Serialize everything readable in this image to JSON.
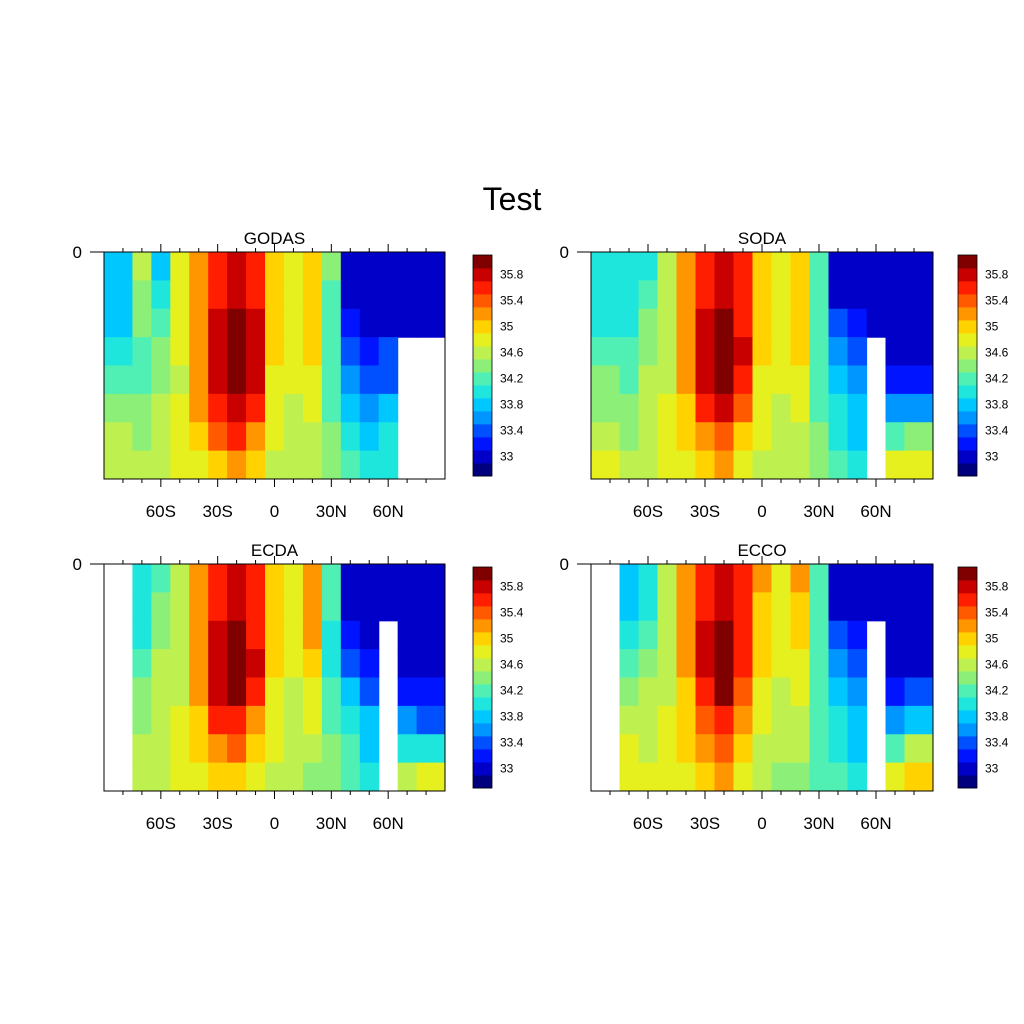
{
  "figure": {
    "title": "Test"
  },
  "colors": {
    "levels": [
      33.0,
      33.2,
      33.4,
      33.6,
      33.8,
      34.0,
      34.2,
      34.4,
      34.6,
      34.8,
      35.0,
      35.2,
      35.4,
      35.6,
      35.8,
      36.0
    ],
    "fills": [
      "#00007f",
      "#0000c8",
      "#0014ff",
      "#0050ff",
      "#0096ff",
      "#00c8ff",
      "#1ee6dc",
      "#50f0b4",
      "#8cf078",
      "#bef050",
      "#e6f01e",
      "#ffd200",
      "#ff9600",
      "#ff5a00",
      "#ff1e00",
      "#c80000",
      "#800000"
    ]
  },
  "colorbar": {
    "tick_labels": [
      "33",
      "33.4",
      "33.8",
      "34.2",
      "34.6",
      "35",
      "35.4",
      "35.8"
    ]
  },
  "x_ticks": [
    "60S",
    "30S",
    "0",
    "30N",
    "60N"
  ],
  "y_ticks": [
    "0"
  ],
  "chart_data": [
    {
      "type": "heatmap",
      "title": "GODAS",
      "x": [
        -80,
        -70,
        -60,
        -50,
        -40,
        -30,
        -20,
        -10,
        0,
        10,
        20,
        30,
        40,
        50,
        60,
        70,
        80
      ],
      "y_depth_levels": [
        0,
        1,
        2,
        3,
        4,
        5,
        6,
        7
      ],
      "values": [
        [
          33.9,
          34.6,
          33.8,
          34.8,
          35.2,
          35.6,
          35.8,
          35.6,
          35.0,
          34.8,
          35.0,
          34.4,
          33.0,
          33.0,
          33.0,
          33.0,
          33.0
        ],
        [
          33.8,
          34.5,
          34.0,
          34.8,
          35.3,
          35.7,
          35.8,
          35.7,
          35.1,
          34.8,
          35.0,
          34.3,
          33.0,
          33.0,
          33.0,
          33.0,
          33.0
        ],
        [
          33.9,
          34.4,
          34.2,
          34.8,
          35.3,
          35.8,
          36.0,
          35.8,
          35.0,
          34.9,
          35.1,
          34.3,
          33.2,
          33.1,
          33.0,
          33.0,
          33.0
        ],
        [
          34.1,
          34.3,
          34.4,
          34.8,
          35.3,
          35.8,
          36.1,
          35.9,
          35.0,
          34.9,
          35.0,
          34.2,
          33.4,
          33.3,
          33.4,
          null,
          null
        ],
        [
          34.2,
          34.2,
          34.5,
          34.7,
          35.2,
          35.8,
          36.2,
          35.8,
          34.9,
          34.8,
          34.9,
          34.2,
          33.6,
          33.5,
          33.5,
          null,
          null
        ],
        [
          34.4,
          34.4,
          34.6,
          34.8,
          35.2,
          35.7,
          35.9,
          35.6,
          34.9,
          34.7,
          34.8,
          34.3,
          33.8,
          33.7,
          33.8,
          null,
          null
        ],
        [
          34.6,
          34.5,
          34.6,
          34.8,
          35.0,
          35.4,
          35.6,
          35.2,
          34.8,
          34.6,
          34.7,
          34.4,
          34.0,
          33.9,
          34.0,
          null,
          null
        ],
        [
          34.6,
          34.6,
          34.6,
          34.8,
          34.9,
          35.1,
          35.2,
          35.0,
          34.7,
          34.6,
          34.6,
          34.4,
          34.2,
          34.0,
          34.1,
          null,
          null
        ]
      ]
    },
    {
      "type": "heatmap",
      "title": "SODA",
      "x": [
        -80,
        -70,
        -60,
        -50,
        -40,
        -30,
        -20,
        -10,
        0,
        10,
        20,
        30,
        40,
        50,
        60,
        70,
        80
      ],
      "y_depth_levels": [
        0,
        1,
        2,
        3,
        4,
        5,
        6,
        7
      ],
      "values": [
        [
          34.0,
          34.0,
          34.0,
          34.6,
          35.2,
          35.6,
          35.8,
          35.6,
          35.1,
          34.8,
          35.1,
          34.3,
          33.0,
          33.0,
          33.0,
          33.0,
          33.0
        ],
        [
          34.0,
          34.0,
          34.2,
          34.7,
          35.3,
          35.7,
          35.9,
          35.6,
          35.1,
          34.8,
          35.0,
          34.2,
          33.0,
          33.0,
          33.0,
          33.0,
          33.0
        ],
        [
          34.1,
          34.1,
          34.4,
          34.7,
          35.3,
          35.8,
          36.0,
          35.7,
          35.0,
          34.9,
          35.1,
          34.2,
          33.4,
          33.2,
          33.0,
          33.0,
          33.0
        ],
        [
          34.2,
          34.2,
          34.5,
          34.7,
          35.3,
          35.8,
          36.1,
          35.8,
          35.0,
          34.9,
          35.0,
          34.2,
          33.6,
          33.4,
          null,
          33.1,
          33.0
        ],
        [
          34.4,
          34.3,
          34.6,
          34.7,
          35.2,
          35.8,
          36.1,
          35.7,
          34.9,
          34.8,
          34.9,
          34.2,
          33.8,
          33.6,
          null,
          33.3,
          33.2
        ],
        [
          34.5,
          34.4,
          34.6,
          34.8,
          35.1,
          35.6,
          35.8,
          35.4,
          34.9,
          34.7,
          34.8,
          34.3,
          34.0,
          33.8,
          null,
          33.6,
          33.6
        ],
        [
          34.6,
          34.5,
          34.6,
          34.8,
          35.0,
          35.3,
          35.5,
          35.1,
          34.8,
          34.6,
          34.7,
          34.4,
          34.1,
          33.9,
          null,
          34.2,
          34.4
        ],
        [
          34.8,
          34.7,
          34.7,
          34.8,
          34.9,
          35.1,
          35.2,
          34.9,
          34.7,
          34.6,
          34.6,
          34.4,
          34.2,
          34.0,
          null,
          34.8,
          34.9
        ]
      ]
    },
    {
      "type": "heatmap",
      "title": "ECDA",
      "x": [
        -80,
        -70,
        -60,
        -50,
        -40,
        -30,
        -20,
        -10,
        0,
        10,
        20,
        30,
        40,
        50,
        60,
        70,
        80
      ],
      "y_depth_levels": [
        0,
        1,
        2,
        3,
        4,
        5,
        6,
        7
      ],
      "values": [
        [
          null,
          34.0,
          34.2,
          34.6,
          35.2,
          35.6,
          35.8,
          35.6,
          35.1,
          34.8,
          35.2,
          34.2,
          33.0,
          33.0,
          33.0,
          33.0,
          33.0
        ],
        [
          null,
          34.0,
          34.4,
          34.7,
          35.3,
          35.7,
          35.9,
          35.6,
          35.1,
          34.8,
          35.2,
          34.2,
          33.0,
          33.0,
          33.0,
          33.0,
          33.0
        ],
        [
          null,
          34.1,
          34.5,
          34.7,
          35.3,
          35.8,
          36.0,
          35.7,
          35.0,
          34.9,
          35.3,
          34.1,
          33.3,
          33.1,
          null,
          33.0,
          33.0
        ],
        [
          null,
          34.3,
          34.6,
          34.7,
          35.3,
          35.8,
          36.1,
          35.8,
          35.0,
          34.8,
          35.1,
          34.1,
          33.5,
          33.3,
          null,
          33.1,
          33.0
        ],
        [
          null,
          34.4,
          34.6,
          34.7,
          35.2,
          35.8,
          36.1,
          35.6,
          34.9,
          34.7,
          34.9,
          34.2,
          33.8,
          33.5,
          null,
          33.3,
          33.2
        ],
        [
          null,
          34.5,
          34.6,
          34.8,
          35.1,
          35.6,
          35.7,
          35.3,
          34.9,
          34.7,
          34.8,
          34.3,
          34.0,
          33.8,
          null,
          33.6,
          33.5
        ],
        [
          null,
          34.6,
          34.6,
          34.8,
          35.0,
          35.3,
          35.4,
          35.0,
          34.8,
          34.6,
          34.6,
          34.4,
          34.2,
          33.9,
          null,
          34.0,
          34.1
        ],
        [
          null,
          34.7,
          34.7,
          34.8,
          34.9,
          35.0,
          35.1,
          34.9,
          34.7,
          34.6,
          34.5,
          34.4,
          34.3,
          34.1,
          null,
          34.6,
          34.8
        ]
      ]
    },
    {
      "type": "heatmap",
      "title": "ECCO",
      "x": [
        -80,
        -70,
        -60,
        -50,
        -40,
        -30,
        -20,
        -10,
        0,
        10,
        20,
        30,
        40,
        50,
        60,
        70,
        80
      ],
      "y_depth_levels": [
        0,
        1,
        2,
        3,
        4,
        5,
        6,
        7
      ],
      "values": [
        [
          null,
          33.8,
          34.0,
          34.6,
          35.2,
          35.6,
          35.9,
          35.6,
          35.2,
          34.8,
          35.2,
          34.3,
          33.0,
          33.0,
          33.0,
          33.0,
          33.0
        ],
        [
          null,
          33.8,
          34.1,
          34.7,
          35.3,
          35.7,
          35.9,
          35.6,
          35.1,
          34.8,
          35.1,
          34.2,
          33.0,
          33.0,
          33.0,
          33.0,
          33.0
        ],
        [
          null,
          34.0,
          34.3,
          34.7,
          35.3,
          35.8,
          36.0,
          35.7,
          35.0,
          34.9,
          35.0,
          34.2,
          33.4,
          33.2,
          null,
          33.0,
          33.0
        ],
        [
          null,
          34.2,
          34.5,
          34.7,
          35.2,
          35.8,
          36.1,
          35.7,
          35.0,
          34.8,
          34.9,
          34.2,
          33.6,
          33.4,
          null,
          33.0,
          33.1
        ],
        [
          null,
          34.4,
          34.6,
          34.7,
          35.1,
          35.7,
          36.0,
          35.5,
          34.9,
          34.7,
          34.8,
          34.2,
          33.8,
          33.6,
          null,
          33.2,
          33.4
        ],
        [
          null,
          34.6,
          34.6,
          34.8,
          35.0,
          35.5,
          35.7,
          35.2,
          34.8,
          34.6,
          34.7,
          34.3,
          34.0,
          33.8,
          null,
          33.6,
          33.9
        ],
        [
          null,
          34.8,
          34.7,
          34.8,
          35.0,
          35.3,
          35.4,
          35.0,
          34.7,
          34.6,
          34.6,
          34.3,
          34.1,
          33.9,
          null,
          34.2,
          34.6
        ],
        [
          null,
          34.9,
          34.8,
          34.8,
          34.9,
          35.1,
          35.2,
          34.9,
          34.7,
          34.5,
          34.5,
          34.3,
          34.2,
          34.0,
          null,
          34.9,
          35.0
        ]
      ]
    }
  ]
}
